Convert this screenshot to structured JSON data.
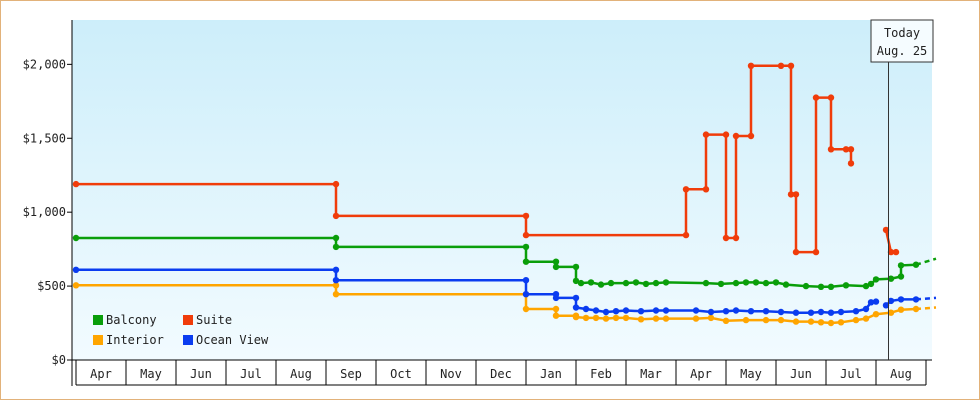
{
  "chart_data": {
    "type": "line",
    "title": "",
    "xlabel": "",
    "ylabel": "",
    "ylim": [
      0,
      2300
    ],
    "yticks": [
      {
        "value": 0,
        "label": "$0"
      },
      {
        "value": 500,
        "label": "$500"
      },
      {
        "value": 1000,
        "label": "$1,000"
      },
      {
        "value": 1500,
        "label": "$1,500"
      },
      {
        "value": 2000,
        "label": "$2,000"
      }
    ],
    "months": [
      "Apr",
      "May",
      "Jun",
      "Jul",
      "Aug",
      "Sep",
      "Oct",
      "Nov",
      "Dec",
      "Jan",
      "Feb",
      "Mar",
      "Apr",
      "May",
      "Jun",
      "Jul",
      "Aug"
    ],
    "grid": false,
    "legend_position": "bottom-left",
    "background_gradient": [
      "#cdeefa",
      "#f2fbff"
    ],
    "today": {
      "line1": "Today",
      "line2": "Aug. 25",
      "x": 16.25
    },
    "series": [
      {
        "name": "Balcony",
        "color": "#0a9e0a",
        "points": [
          [
            0,
            825
          ],
          [
            5.2,
            825
          ],
          [
            5.2,
            765
          ],
          [
            9.0,
            765
          ],
          [
            9.0,
            665
          ],
          [
            9.6,
            665
          ],
          [
            9.6,
            630
          ],
          [
            10.0,
            630
          ],
          [
            10.0,
            535
          ],
          [
            10.1,
            520
          ],
          [
            10.3,
            525
          ],
          [
            10.5,
            510
          ],
          [
            10.7,
            520
          ],
          [
            11.0,
            520
          ],
          [
            11.2,
            525
          ],
          [
            11.4,
            515
          ],
          [
            11.6,
            520
          ],
          [
            11.8,
            525
          ],
          [
            12.6,
            520
          ],
          [
            12.9,
            515
          ],
          [
            13.2,
            520
          ],
          [
            13.4,
            525
          ],
          [
            13.6,
            525
          ],
          [
            13.8,
            520
          ],
          [
            14.0,
            525
          ],
          [
            14.2,
            510
          ],
          [
            14.6,
            500
          ],
          [
            14.9,
            495
          ],
          [
            15.1,
            495
          ],
          [
            15.4,
            505
          ],
          [
            15.8,
            500
          ],
          [
            15.9,
            515
          ],
          [
            16.0,
            545
          ],
          [
            16.3,
            550
          ],
          [
            16.5,
            565
          ],
          [
            16.5,
            640
          ],
          [
            16.8,
            645
          ]
        ],
        "projection": [
          [
            16.8,
            645
          ],
          [
            17.2,
            685
          ]
        ]
      },
      {
        "name": "Suite",
        "color": "#f03c0a",
        "points": [
          [
            0,
            1190
          ],
          [
            5.2,
            1190
          ],
          [
            5.2,
            975
          ],
          [
            9.0,
            975
          ],
          [
            9.0,
            845
          ],
          [
            12.2,
            845
          ],
          [
            12.2,
            1155
          ],
          [
            12.6,
            1155
          ],
          [
            12.6,
            1525
          ],
          [
            13.0,
            1525
          ],
          [
            13.0,
            825
          ],
          [
            13.2,
            825
          ],
          [
            13.2,
            1515
          ],
          [
            13.5,
            1515
          ],
          [
            13.5,
            1990
          ],
          [
            14.1,
            1990
          ],
          [
            14.3,
            1990
          ],
          [
            14.3,
            1120
          ],
          [
            14.4,
            1120
          ],
          [
            14.4,
            730
          ],
          [
            14.8,
            730
          ],
          [
            14.8,
            1775
          ],
          [
            15.1,
            1775
          ],
          [
            15.1,
            1425
          ],
          [
            15.4,
            1425
          ],
          [
            15.5,
            1425
          ],
          [
            15.5,
            1330
          ]
        ],
        "segments2": [
          [
            16.2,
            880
          ],
          [
            16.3,
            730
          ],
          [
            16.4,
            730
          ]
        ]
      },
      {
        "name": "Interior",
        "color": "#ffa500",
        "points": [
          [
            0,
            505
          ],
          [
            5.2,
            505
          ],
          [
            5.2,
            445
          ],
          [
            9.0,
            445
          ],
          [
            9.0,
            345
          ],
          [
            9.6,
            345
          ],
          [
            9.6,
            300
          ],
          [
            10.0,
            300
          ],
          [
            10.0,
            290
          ],
          [
            10.2,
            285
          ],
          [
            10.4,
            285
          ],
          [
            10.6,
            280
          ],
          [
            10.8,
            285
          ],
          [
            11.0,
            285
          ],
          [
            11.3,
            275
          ],
          [
            11.6,
            280
          ],
          [
            11.8,
            280
          ],
          [
            12.4,
            280
          ],
          [
            12.7,
            285
          ],
          [
            13.0,
            265
          ],
          [
            13.4,
            270
          ],
          [
            13.8,
            270
          ],
          [
            14.1,
            270
          ],
          [
            14.4,
            260
          ],
          [
            14.7,
            260
          ],
          [
            14.9,
            255
          ],
          [
            15.1,
            250
          ],
          [
            15.3,
            255
          ],
          [
            15.6,
            270
          ],
          [
            15.8,
            280
          ],
          [
            16.0,
            310
          ],
          [
            16.3,
            320
          ],
          [
            16.5,
            340
          ],
          [
            16.8,
            345
          ]
        ],
        "projection": [
          [
            16.8,
            345
          ],
          [
            17.2,
            355
          ]
        ]
      },
      {
        "name": "Ocean View",
        "color": "#0a3cf0",
        "points": [
          [
            0,
            610
          ],
          [
            5.2,
            610
          ],
          [
            5.2,
            540
          ],
          [
            9.0,
            540
          ],
          [
            9.0,
            445
          ],
          [
            9.6,
            445
          ],
          [
            9.6,
            420
          ],
          [
            10.0,
            420
          ],
          [
            10.0,
            355
          ],
          [
            10.2,
            345
          ],
          [
            10.4,
            335
          ],
          [
            10.6,
            325
          ],
          [
            10.8,
            330
          ],
          [
            11.0,
            335
          ],
          [
            11.3,
            330
          ],
          [
            11.6,
            335
          ],
          [
            11.8,
            335
          ],
          [
            12.4,
            335
          ],
          [
            12.7,
            325
          ],
          [
            13.0,
            330
          ],
          [
            13.2,
            335
          ],
          [
            13.5,
            330
          ],
          [
            13.8,
            330
          ],
          [
            14.1,
            325
          ],
          [
            14.4,
            320
          ],
          [
            14.7,
            320
          ],
          [
            14.9,
            325
          ],
          [
            15.1,
            320
          ],
          [
            15.3,
            325
          ],
          [
            15.6,
            330
          ],
          [
            15.8,
            345
          ],
          [
            15.9,
            390
          ],
          [
            16.0,
            395
          ]
        ],
        "segments2": [
          [
            16.2,
            370
          ],
          [
            16.3,
            400
          ],
          [
            16.5,
            410
          ],
          [
            16.8,
            410
          ]
        ],
        "projection": [
          [
            16.8,
            410
          ],
          [
            17.2,
            420
          ]
        ]
      }
    ]
  }
}
